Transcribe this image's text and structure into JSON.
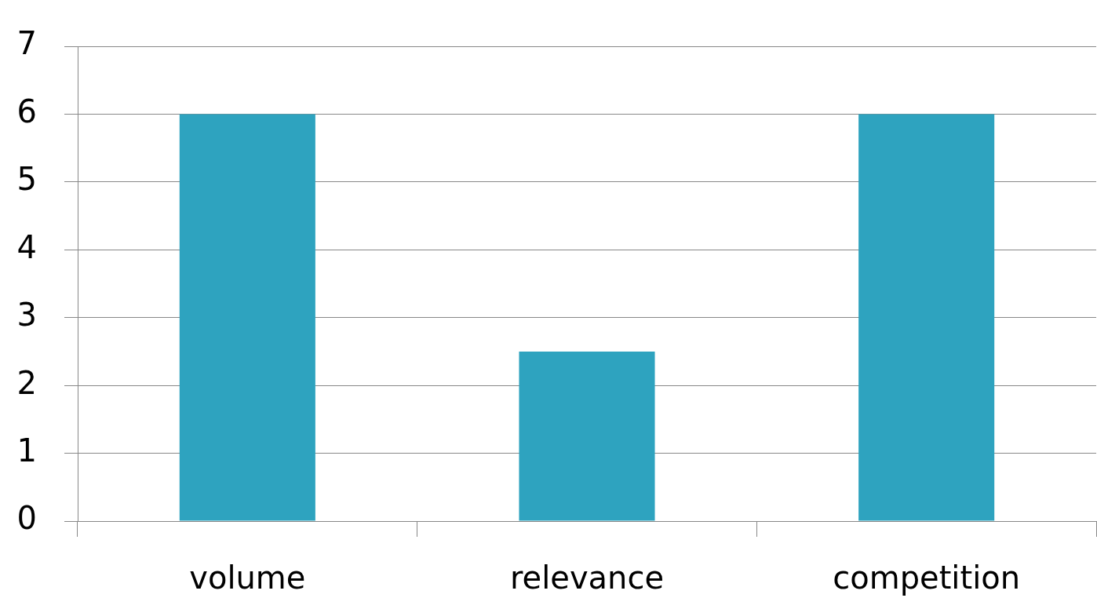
{
  "chart_data": {
    "type": "bar",
    "categories": [
      "volume",
      "relevance",
      "competition"
    ],
    "values": [
      6,
      2.5,
      6
    ],
    "color": "#2ea3bf",
    "ylim": [
      0,
      7
    ],
    "yticks": [
      0,
      1,
      2,
      3,
      4,
      5,
      6,
      7
    ],
    "grid": "y",
    "legend": false
  }
}
